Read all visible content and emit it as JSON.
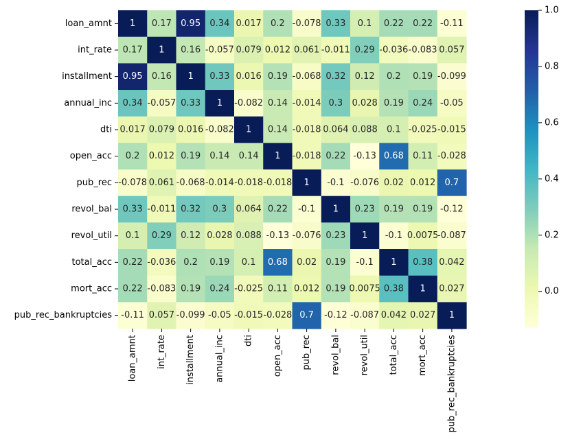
{
  "chart_data": {
    "type": "heatmap",
    "title": "",
    "xlabel": "",
    "ylabel": "",
    "row_labels": [
      "loan_amnt",
      "int_rate",
      "installment",
      "annual_inc",
      "dti",
      "open_acc",
      "pub_rec",
      "revol_bal",
      "revol_util",
      "total_acc",
      "mort_acc",
      "pub_rec_bankruptcies"
    ],
    "col_labels": [
      "loan_amnt",
      "int_rate",
      "installment",
      "annual_inc",
      "dti",
      "open_acc",
      "pub_rec",
      "revol_bal",
      "revol_util",
      "total_acc",
      "mort_acc",
      "pub_rec_bankruptcies"
    ],
    "values": [
      [
        1,
        0.17,
        0.95,
        0.34,
        0.017,
        0.2,
        -0.078,
        0.33,
        0.1,
        0.22,
        0.22,
        -0.11
      ],
      [
        0.17,
        1,
        0.16,
        -0.057,
        0.079,
        0.012,
        0.061,
        -0.011,
        0.29,
        -0.036,
        -0.083,
        0.057
      ],
      [
        0.95,
        0.16,
        1,
        0.33,
        0.016,
        0.19,
        -0.068,
        0.32,
        0.12,
        0.2,
        0.19,
        -0.099
      ],
      [
        0.34,
        -0.057,
        0.33,
        1,
        -0.082,
        0.14,
        -0.014,
        0.3,
        0.028,
        0.19,
        0.24,
        -0.05
      ],
      [
        0.017,
        0.079,
        0.016,
        -0.082,
        1,
        0.14,
        -0.018,
        0.064,
        0.088,
        0.1,
        -0.025,
        -0.015
      ],
      [
        0.2,
        0.012,
        0.19,
        0.14,
        0.14,
        1,
        -0.018,
        0.22,
        -0.13,
        0.68,
        0.11,
        -0.028
      ],
      [
        -0.078,
        0.061,
        -0.068,
        -0.014,
        -0.018,
        -0.018,
        1,
        -0.1,
        -0.076,
        0.02,
        0.012,
        0.7
      ],
      [
        0.33,
        -0.011,
        0.32,
        0.3,
        0.064,
        0.22,
        -0.1,
        1,
        0.23,
        0.19,
        0.19,
        -0.12
      ],
      [
        0.1,
        0.29,
        0.12,
        0.028,
        0.088,
        -0.13,
        -0.076,
        0.23,
        1,
        -0.1,
        0.0075,
        -0.087
      ],
      [
        0.22,
        -0.036,
        0.2,
        0.19,
        0.1,
        0.68,
        0.02,
        0.19,
        -0.1,
        1,
        0.38,
        0.042
      ],
      [
        0.22,
        -0.083,
        0.19,
        0.24,
        -0.025,
        0.11,
        0.012,
        0.19,
        0.0075,
        0.38,
        1,
        0.027
      ],
      [
        -0.11,
        0.057,
        -0.099,
        -0.05,
        -0.015,
        -0.028,
        0.7,
        -0.12,
        -0.087,
        0.042,
        0.027,
        1
      ]
    ],
    "colormap": "YlGnBu",
    "value_range": [
      -0.13,
      1.0
    ],
    "colorbar": {
      "ticks": [
        0.0,
        0.2,
        0.4,
        0.6,
        0.8,
        1.0
      ],
      "tick_labels": [
        "0.0",
        "0.2",
        "0.4",
        "0.6",
        "0.8",
        "1.0"
      ],
      "placement": "right"
    },
    "annotated": true,
    "grid": false
  }
}
